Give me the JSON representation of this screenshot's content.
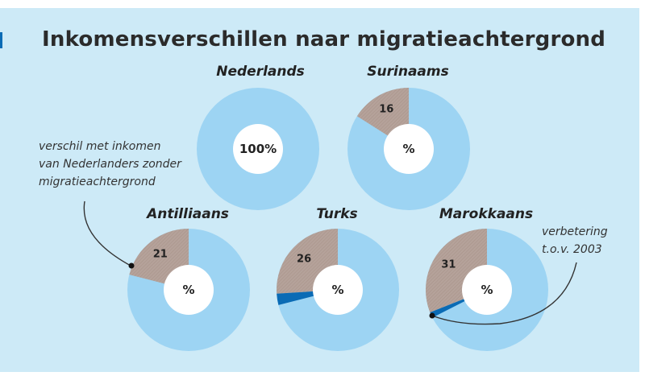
{
  "title": "Inkomensverschillen naar migratieachtergrond",
  "annotations": {
    "difference_note": [
      "verschil met inkomen",
      "van Nederlanders zonder",
      "migratieachtergrond"
    ],
    "improvement_note": [
      "verbetering",
      "t.o.v. 2003"
    ]
  },
  "colors": {
    "base": "#9dd4f3",
    "difference": "#b5a29a",
    "improvement": "#0a6bb5",
    "center": "#ffffff",
    "background": "#cdeaf7"
  },
  "chart_data": [
    {
      "type": "pie",
      "title": "Nederlands",
      "difference": 0,
      "improvement": 0,
      "center_label": "100%",
      "slice_label": ""
    },
    {
      "type": "pie",
      "title": "Surinaams",
      "difference": 16,
      "improvement": 0,
      "center_label": "%",
      "slice_label": "16"
    },
    {
      "type": "pie",
      "title": "Antilliaans",
      "difference": 21,
      "improvement": 0,
      "center_label": "%",
      "slice_label": "21"
    },
    {
      "type": "pie",
      "title": "Turks",
      "difference": 26,
      "improvement": 3,
      "center_label": "%",
      "slice_label": "26"
    },
    {
      "type": "pie",
      "title": "Marokkaans",
      "difference": 31,
      "improvement": 1.5,
      "center_label": "%",
      "slice_label": "31"
    }
  ]
}
